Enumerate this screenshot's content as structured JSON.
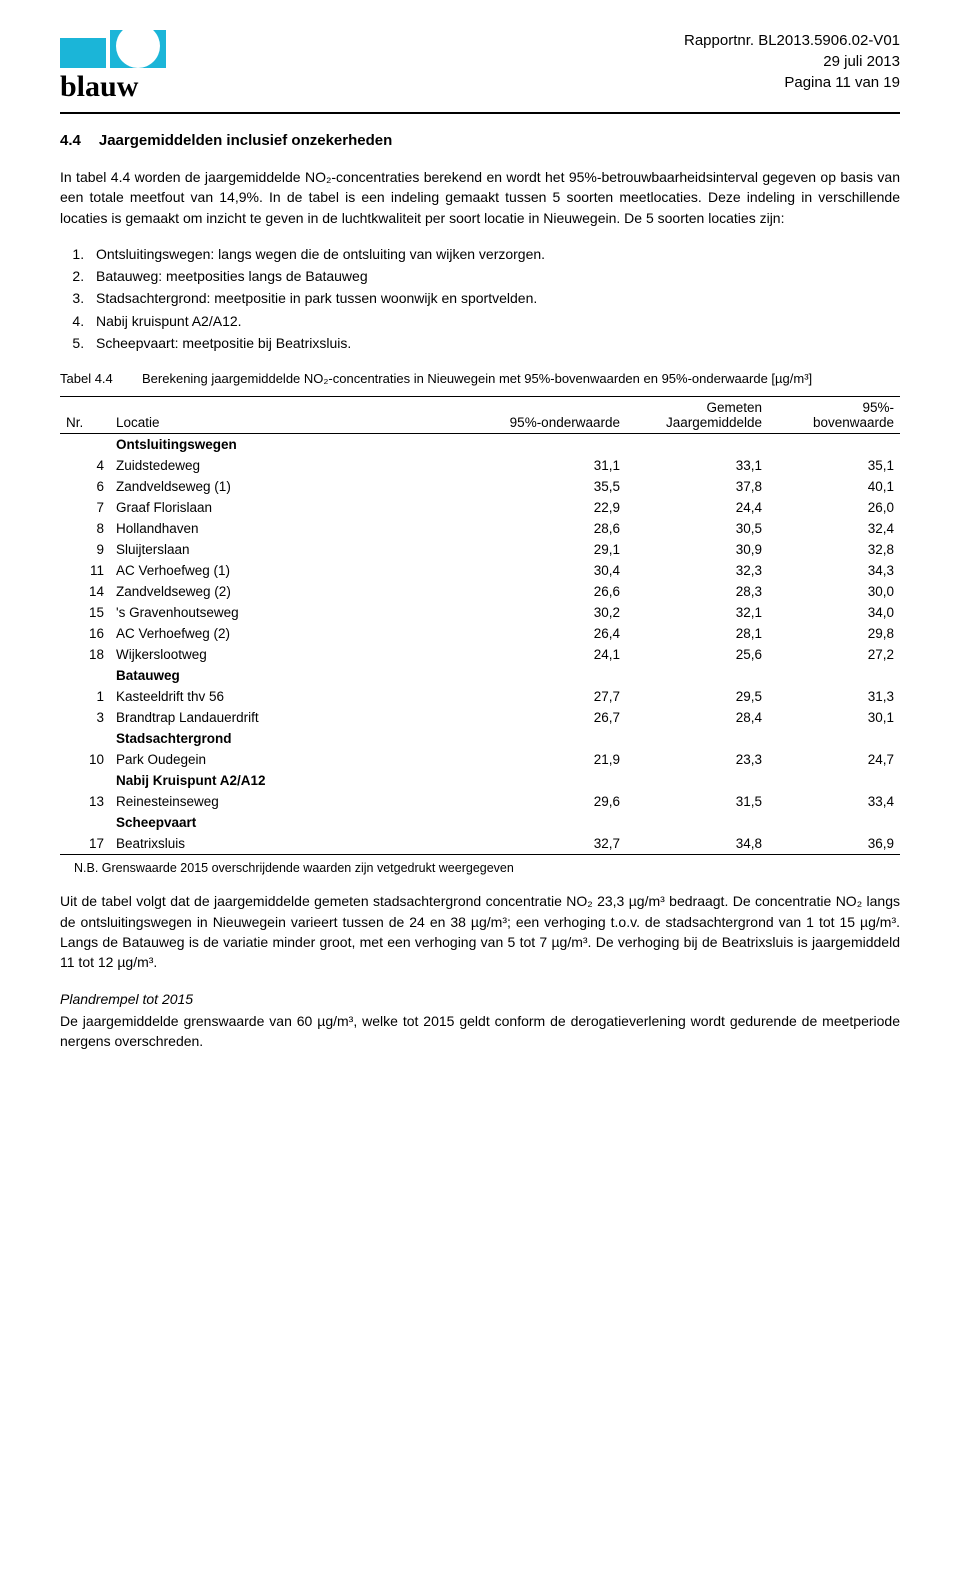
{
  "header": {
    "report": "Rapportnr. BL2013.5906.02-V01",
    "date": "29 juli 2013",
    "page": "Pagina 11 van 19",
    "logo_word": "blauw",
    "logo_cyan": "#1bb5d8"
  },
  "section": {
    "num": "4.4",
    "title": "Jaargemiddelden inclusief onzekerheden"
  },
  "intro": "In tabel 4.4 worden de jaargemiddelde NO₂-concentraties berekend en wordt het 95%-betrouwbaarheidsinterval gegeven op basis van een totale meetfout van 14,9%. In de tabel is een indeling gemaakt tussen 5 soorten meetlocaties. Deze indeling in verschillende locaties is gemaakt om inzicht te geven in de luchtkwaliteit per soort locatie in Nieuwegein. De 5 soorten locaties zijn:",
  "list": [
    "Ontsluitingswegen: langs wegen die de ontsluiting van wijken verzorgen.",
    "Batauweg: meetposities langs de Batauweg",
    "Stadsachtergrond: meetpositie in park tussen woonwijk en sportvelden.",
    "Nabij kruispunt A2/A12.",
    "Scheepvaart: meetpositie bij Beatrixsluis."
  ],
  "table": {
    "caption_num": "Tabel 4.4",
    "caption": "Berekening jaargemiddelde NO₂-concentraties in Nieuwegein met 95%-bovenwaarden en 95%-onderwaarde [µg/m³]",
    "cols": [
      "Nr.",
      "Locatie",
      "95%-onderwaarde",
      "Gemeten Jaargemiddelde",
      "95%-bovenwaarde"
    ],
    "groups": [
      {
        "name": "Ontsluitingswegen",
        "rows": [
          {
            "nr": "4",
            "loc": "Zuidstedeweg",
            "lo": "31,1",
            "mid": "33,1",
            "hi": "35,1"
          },
          {
            "nr": "6",
            "loc": "Zandveldseweg (1)",
            "lo": "35,5",
            "mid": "37,8",
            "hi": "40,1"
          },
          {
            "nr": "7",
            "loc": "Graaf Florislaan",
            "lo": "22,9",
            "mid": "24,4",
            "hi": "26,0"
          },
          {
            "nr": "8",
            "loc": "Hollandhaven",
            "lo": "28,6",
            "mid": "30,5",
            "hi": "32,4"
          },
          {
            "nr": "9",
            "loc": "Sluijterslaan",
            "lo": "29,1",
            "mid": "30,9",
            "hi": "32,8"
          },
          {
            "nr": "11",
            "loc": "AC Verhoefweg (1)",
            "lo": "30,4",
            "mid": "32,3",
            "hi": "34,3"
          },
          {
            "nr": "14",
            "loc": "Zandveldseweg (2)",
            "lo": "26,6",
            "mid": "28,3",
            "hi": "30,0"
          },
          {
            "nr": "15",
            "loc": "'s Gravenhoutseweg",
            "lo": "30,2",
            "mid": "32,1",
            "hi": "34,0"
          },
          {
            "nr": "16",
            "loc": "AC Verhoefweg (2)",
            "lo": "26,4",
            "mid": "28,1",
            "hi": "29,8"
          },
          {
            "nr": "18",
            "loc": "Wijkerslootweg",
            "lo": "24,1",
            "mid": "25,6",
            "hi": "27,2"
          }
        ]
      },
      {
        "name": "Batauweg",
        "rows": [
          {
            "nr": "1",
            "loc": "Kasteeldrift thv 56",
            "lo": "27,7",
            "mid": "29,5",
            "hi": "31,3"
          },
          {
            "nr": "3",
            "loc": "Brandtrap Landauerdrift",
            "lo": "26,7",
            "mid": "28,4",
            "hi": "30,1"
          }
        ]
      },
      {
        "name": "Stadsachtergrond",
        "rows": [
          {
            "nr": "10",
            "loc": "Park Oudegein",
            "lo": "21,9",
            "mid": "23,3",
            "hi": "24,7"
          }
        ]
      },
      {
        "name": "Nabij Kruispunt A2/A12",
        "rows": [
          {
            "nr": "13",
            "loc": "Reinesteinseweg",
            "lo": "29,6",
            "mid": "31,5",
            "hi": "33,4"
          }
        ]
      },
      {
        "name": "Scheepvaart",
        "rows": [
          {
            "nr": "17",
            "loc": "Beatrixsluis",
            "lo": "32,7",
            "mid": "34,8",
            "hi": "36,9"
          }
        ]
      }
    ],
    "footnote": "N.B. Grenswaarde 2015 overschrijdende waarden zijn vetgedrukt weergegeven"
  },
  "para2": "Uit de tabel volgt dat de jaargemiddelde gemeten stadsachtergrond concentratie NO₂ 23,3 µg/m³ bedraagt. De concentratie NO₂ langs de ontsluitingswegen in Nieuwegein varieert tussen de 24 en 38 µg/m³; een verhoging t.o.v. de stadsachtergrond van 1 tot 15 µg/m³. Langs de Batauweg is de variatie minder groot, met een verhoging van 5 tot 7 µg/m³. De verhoging bij de Beatrixsluis is jaargemiddeld 11 tot 12 µg/m³.",
  "sub_h": "Plandrempel tot 2015",
  "para3": "De jaargemiddelde grenswaarde van 60 µg/m³, welke tot 2015 geldt conform de derogatieverlening wordt gedurende de meetperiode nergens overschreden."
}
